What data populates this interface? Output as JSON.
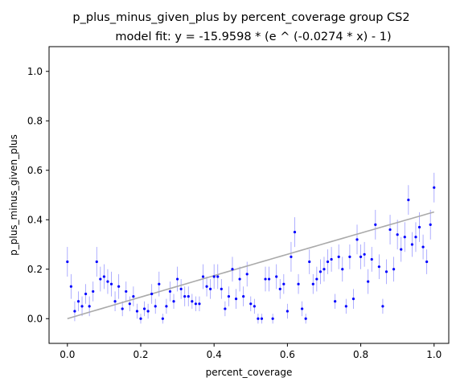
{
  "chart_data": {
    "type": "scatter",
    "title": "p_plus_minus_given_plus by percent_coverage group CS2",
    "subtitle": "model fit: y = -15.9598 * (e ^ (-0.0274 * x) - 1)",
    "xlabel": "percent_coverage",
    "ylabel": "p_plus_minus_given_plus",
    "xlim": [
      -0.05,
      1.04
    ],
    "ylim": [
      -0.1,
      1.1
    ],
    "xticks": [
      "0.0",
      "0.2",
      "0.4",
      "0.6",
      "0.8",
      "1.0"
    ],
    "yticks": [
      "0.0",
      "0.2",
      "0.4",
      "0.6",
      "0.8",
      "1.0"
    ],
    "grid": false,
    "colors": {
      "points": "#0000ff",
      "error_bars": "#9a9aff",
      "fit_line": "#aaaaaa"
    },
    "fit": {
      "a": -15.9598,
      "b": -0.0274,
      "x_range": [
        0.0,
        1.0
      ]
    },
    "points": [
      {
        "x": 0.0,
        "y": 0.23,
        "err": 0.06
      },
      {
        "x": 0.01,
        "y": 0.13,
        "err": 0.05
      },
      {
        "x": 0.02,
        "y": 0.03,
        "err": 0.04
      },
      {
        "x": 0.03,
        "y": 0.07,
        "err": 0.04
      },
      {
        "x": 0.04,
        "y": 0.05,
        "err": 0.04
      },
      {
        "x": 0.05,
        "y": 0.1,
        "err": 0.04
      },
      {
        "x": 0.06,
        "y": 0.05,
        "err": 0.04
      },
      {
        "x": 0.07,
        "y": 0.11,
        "err": 0.04
      },
      {
        "x": 0.08,
        "y": 0.23,
        "err": 0.06
      },
      {
        "x": 0.09,
        "y": 0.16,
        "err": 0.05
      },
      {
        "x": 0.1,
        "y": 0.17,
        "err": 0.05
      },
      {
        "x": 0.11,
        "y": 0.15,
        "err": 0.05
      },
      {
        "x": 0.12,
        "y": 0.14,
        "err": 0.05
      },
      {
        "x": 0.13,
        "y": 0.07,
        "err": 0.04
      },
      {
        "x": 0.14,
        "y": 0.13,
        "err": 0.05
      },
      {
        "x": 0.15,
        "y": 0.04,
        "err": 0.03
      },
      {
        "x": 0.16,
        "y": 0.11,
        "err": 0.04
      },
      {
        "x": 0.17,
        "y": 0.06,
        "err": 0.03
      },
      {
        "x": 0.18,
        "y": 0.09,
        "err": 0.04
      },
      {
        "x": 0.19,
        "y": 0.03,
        "err": 0.03
      },
      {
        "x": 0.2,
        "y": 0.0,
        "err": 0.02
      },
      {
        "x": 0.21,
        "y": 0.04,
        "err": 0.03
      },
      {
        "x": 0.22,
        "y": 0.03,
        "err": 0.03
      },
      {
        "x": 0.23,
        "y": 0.1,
        "err": 0.04
      },
      {
        "x": 0.24,
        "y": 0.05,
        "err": 0.03
      },
      {
        "x": 0.25,
        "y": 0.14,
        "err": 0.05
      },
      {
        "x": 0.26,
        "y": 0.0,
        "err": 0.02
      },
      {
        "x": 0.27,
        "y": 0.05,
        "err": 0.03
      },
      {
        "x": 0.28,
        "y": 0.11,
        "err": 0.04
      },
      {
        "x": 0.29,
        "y": 0.07,
        "err": 0.03
      },
      {
        "x": 0.3,
        "y": 0.16,
        "err": 0.05
      },
      {
        "x": 0.31,
        "y": 0.12,
        "err": 0.04
      },
      {
        "x": 0.32,
        "y": 0.09,
        "err": 0.04
      },
      {
        "x": 0.33,
        "y": 0.09,
        "err": 0.04
      },
      {
        "x": 0.34,
        "y": 0.07,
        "err": 0.03
      },
      {
        "x": 0.35,
        "y": 0.06,
        "err": 0.03
      },
      {
        "x": 0.36,
        "y": 0.06,
        "err": 0.03
      },
      {
        "x": 0.37,
        "y": 0.17,
        "err": 0.05
      },
      {
        "x": 0.38,
        "y": 0.13,
        "err": 0.04
      },
      {
        "x": 0.39,
        "y": 0.12,
        "err": 0.04
      },
      {
        "x": 0.4,
        "y": 0.17,
        "err": 0.05
      },
      {
        "x": 0.41,
        "y": 0.17,
        "err": 0.05
      },
      {
        "x": 0.42,
        "y": 0.12,
        "err": 0.04
      },
      {
        "x": 0.43,
        "y": 0.04,
        "err": 0.03
      },
      {
        "x": 0.44,
        "y": 0.09,
        "err": 0.04
      },
      {
        "x": 0.45,
        "y": 0.2,
        "err": 0.05
      },
      {
        "x": 0.46,
        "y": 0.08,
        "err": 0.04
      },
      {
        "x": 0.47,
        "y": 0.16,
        "err": 0.05
      },
      {
        "x": 0.48,
        "y": 0.09,
        "err": 0.04
      },
      {
        "x": 0.49,
        "y": 0.18,
        "err": 0.05
      },
      {
        "x": 0.5,
        "y": 0.06,
        "err": 0.03
      },
      {
        "x": 0.51,
        "y": 0.05,
        "err": 0.03
      },
      {
        "x": 0.52,
        "y": 0.0,
        "err": 0.02
      },
      {
        "x": 0.53,
        "y": 0.0,
        "err": 0.02
      },
      {
        "x": 0.54,
        "y": 0.16,
        "err": 0.05
      },
      {
        "x": 0.55,
        "y": 0.16,
        "err": 0.05
      },
      {
        "x": 0.56,
        "y": 0.0,
        "err": 0.02
      },
      {
        "x": 0.57,
        "y": 0.17,
        "err": 0.05
      },
      {
        "x": 0.58,
        "y": 0.12,
        "err": 0.04
      },
      {
        "x": 0.59,
        "y": 0.14,
        "err": 0.04
      },
      {
        "x": 0.6,
        "y": 0.03,
        "err": 0.03
      },
      {
        "x": 0.61,
        "y": 0.25,
        "err": 0.06
      },
      {
        "x": 0.62,
        "y": 0.35,
        "err": 0.06
      },
      {
        "x": 0.63,
        "y": 0.14,
        "err": 0.04
      },
      {
        "x": 0.64,
        "y": 0.04,
        "err": 0.03
      },
      {
        "x": 0.65,
        "y": 0.0,
        "err": 0.02
      },
      {
        "x": 0.66,
        "y": 0.23,
        "err": 0.05
      },
      {
        "x": 0.67,
        "y": 0.14,
        "err": 0.04
      },
      {
        "x": 0.68,
        "y": 0.16,
        "err": 0.05
      },
      {
        "x": 0.69,
        "y": 0.19,
        "err": 0.05
      },
      {
        "x": 0.7,
        "y": 0.2,
        "err": 0.05
      },
      {
        "x": 0.71,
        "y": 0.23,
        "err": 0.05
      },
      {
        "x": 0.72,
        "y": 0.24,
        "err": 0.05
      },
      {
        "x": 0.73,
        "y": 0.07,
        "err": 0.03
      },
      {
        "x": 0.74,
        "y": 0.25,
        "err": 0.05
      },
      {
        "x": 0.75,
        "y": 0.2,
        "err": 0.05
      },
      {
        "x": 0.76,
        "y": 0.05,
        "err": 0.03
      },
      {
        "x": 0.77,
        "y": 0.25,
        "err": 0.05
      },
      {
        "x": 0.78,
        "y": 0.08,
        "err": 0.04
      },
      {
        "x": 0.79,
        "y": 0.32,
        "err": 0.06
      },
      {
        "x": 0.8,
        "y": 0.25,
        "err": 0.05
      },
      {
        "x": 0.81,
        "y": 0.26,
        "err": 0.05
      },
      {
        "x": 0.82,
        "y": 0.15,
        "err": 0.05
      },
      {
        "x": 0.83,
        "y": 0.24,
        "err": 0.05
      },
      {
        "x": 0.84,
        "y": 0.38,
        "err": 0.06
      },
      {
        "x": 0.85,
        "y": 0.21,
        "err": 0.05
      },
      {
        "x": 0.86,
        "y": 0.05,
        "err": 0.03
      },
      {
        "x": 0.87,
        "y": 0.19,
        "err": 0.05
      },
      {
        "x": 0.88,
        "y": 0.36,
        "err": 0.06
      },
      {
        "x": 0.89,
        "y": 0.2,
        "err": 0.05
      },
      {
        "x": 0.9,
        "y": 0.34,
        "err": 0.06
      },
      {
        "x": 0.91,
        "y": 0.28,
        "err": 0.05
      },
      {
        "x": 0.92,
        "y": 0.33,
        "err": 0.06
      },
      {
        "x": 0.93,
        "y": 0.48,
        "err": 0.06
      },
      {
        "x": 0.94,
        "y": 0.3,
        "err": 0.05
      },
      {
        "x": 0.95,
        "y": 0.33,
        "err": 0.06
      },
      {
        "x": 0.96,
        "y": 0.37,
        "err": 0.06
      },
      {
        "x": 0.97,
        "y": 0.29,
        "err": 0.05
      },
      {
        "x": 0.98,
        "y": 0.23,
        "err": 0.05
      },
      {
        "x": 0.99,
        "y": 0.38,
        "err": 0.06
      },
      {
        "x": 1.0,
        "y": 0.53,
        "err": 0.06
      }
    ]
  }
}
